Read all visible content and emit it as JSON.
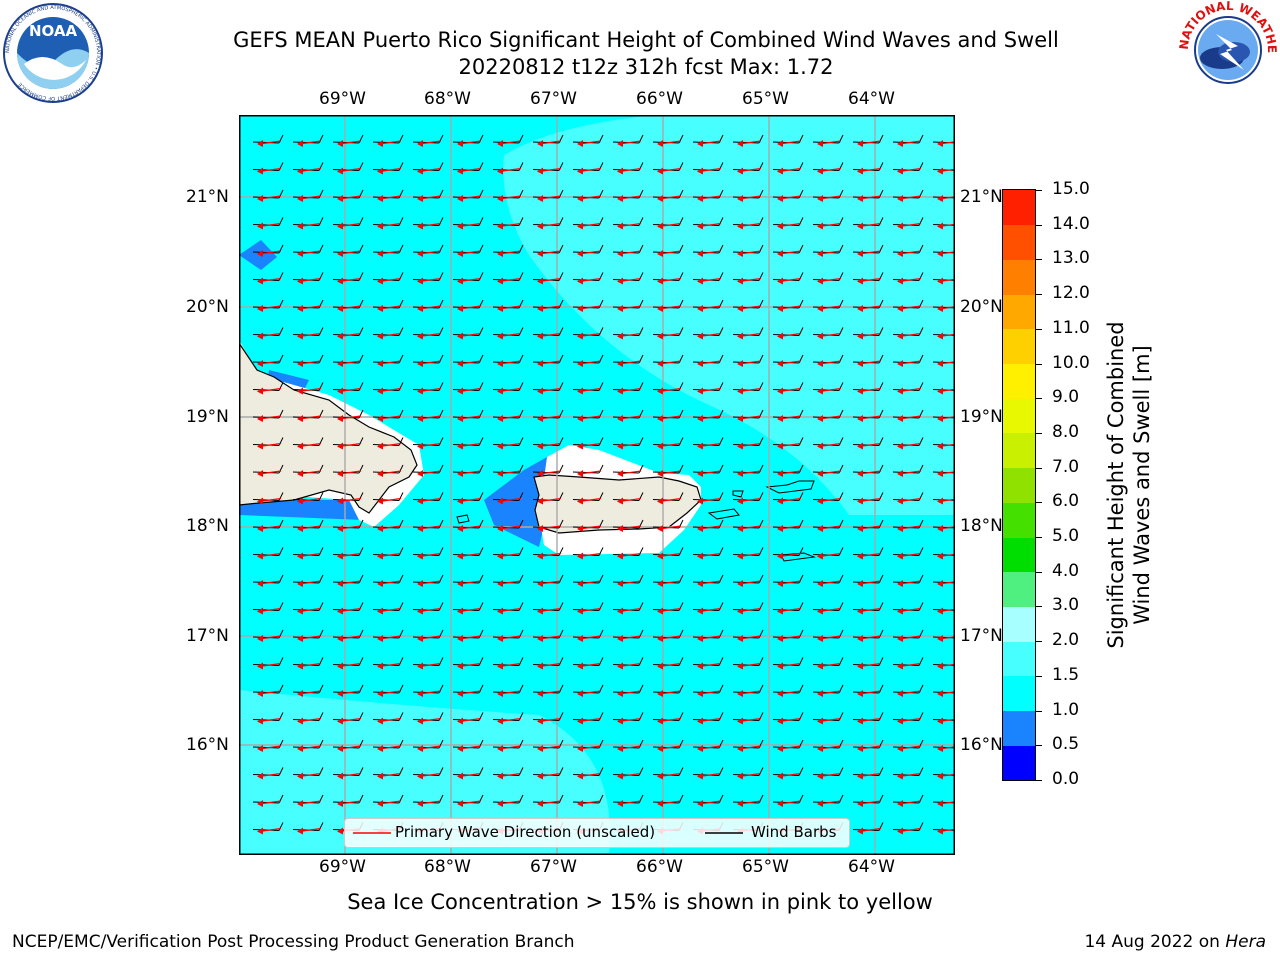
{
  "title": {
    "line1": "GEFS MEAN Puerto Rico Significant Height of Combined Wind Waves and Swell",
    "line2": "20220812 t12z 312h fcst   Max: 1.72"
  },
  "logos": {
    "noaa_text": "NOAA",
    "noaa_ring": "NATIONAL OCEANIC AND ATMOSPHERIC ADMINISTRATION • U.S. DEPARTMENT OF COMMERCE",
    "nws_ring": "NATIONAL WEATHER SERVICE"
  },
  "map": {
    "lon_labels": [
      "69°W",
      "68°W",
      "67°W",
      "66°W",
      "65°W",
      "64°W"
    ],
    "lat_labels": [
      "21°N",
      "20°N",
      "19°N",
      "18°N",
      "17°N",
      "16°N"
    ],
    "colors": {
      "ocean_main": "#00ffff",
      "ocean_light": "#48ffff",
      "shallow_blue": "#1a84ff",
      "land": "#eeecde",
      "coast_mask": "#ffffff",
      "wave_arrow": "#ff0000",
      "wind_barb": "#000000",
      "grid": "#a9a9a9"
    }
  },
  "legend": {
    "primary_wave": "Primary Wave Direction (unscaled)",
    "wind_barbs": "Wind Barbs"
  },
  "colorbar": {
    "title_line1": "Significant Height of Combined",
    "title_line2": "Wind Waves and Swell [m]",
    "ticks": [
      "0.0",
      "0.5",
      "1.0",
      "1.5",
      "2.0",
      "3.0",
      "4.0",
      "5.0",
      "6.0",
      "7.0",
      "8.0",
      "9.0",
      "10.0",
      "11.0",
      "12.0",
      "13.0",
      "14.0",
      "15.0"
    ],
    "colors": [
      "#0000ff",
      "#1a84ff",
      "#00ffff",
      "#48ffff",
      "#a8ffff",
      "#50f080",
      "#00dd00",
      "#44e000",
      "#90e000",
      "#c8f000",
      "#e8f800",
      "#fff000",
      "#ffd000",
      "#ffa800",
      "#ff8000",
      "#ff5000",
      "#ff2000"
    ]
  },
  "caption": "Sea Ice Concentration > 15% is shown in pink to yellow",
  "footer": {
    "left": "NCEP/EMC/Verification Post Processing Product Generation Branch",
    "right_prefix": "14 Aug 2022 on ",
    "right_host": "Hera"
  }
}
